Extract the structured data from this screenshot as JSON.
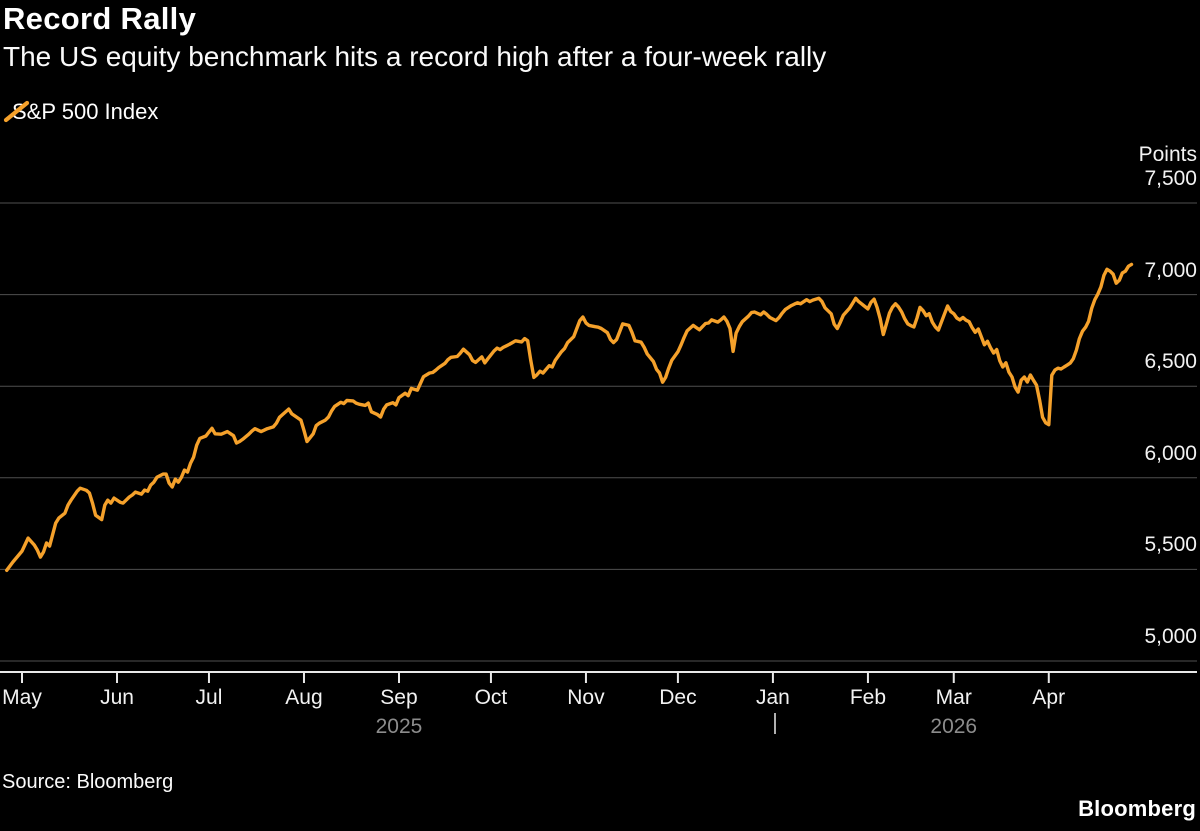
{
  "header": {
    "title": "Record Rally",
    "subtitle": "The US equity benchmark hits a record high after a four-week rally"
  },
  "legend": {
    "series_label": "S&P 500 Index"
  },
  "footer": {
    "source": "Source: Bloomberg",
    "brand": "Bloomberg"
  },
  "colors": {
    "accent": "#F5A12B",
    "grid": "#4f4f4f",
    "axis": "#e8e8e8",
    "text": "#f2f2f2",
    "muted": "#8c8c8c",
    "divider": "#b0b0b0",
    "background": "#000000"
  },
  "chart_data": {
    "type": "line",
    "title": "Record Rally",
    "series_name": "S&P 500 Index",
    "unit_label": "Points",
    "ylim": [
      5000,
      7500
    ],
    "grid": true,
    "y_axis": {
      "ticks": [
        7500,
        7000,
        6500,
        6000,
        5500,
        5000
      ],
      "tick_labels": [
        "7,500",
        "7,000",
        "6,500",
        "6,000",
        "5,500",
        "5,000"
      ]
    },
    "x_axis": {
      "range": [
        "2025-04-26",
        "2026-04-28"
      ],
      "month_ticks": [
        {
          "label": "May",
          "date": "2025-05-01"
        },
        {
          "label": "Jun",
          "date": "2025-06-01"
        },
        {
          "label": "Jul",
          "date": "2025-07-01"
        },
        {
          "label": "Aug",
          "date": "2025-08-01"
        },
        {
          "label": "Sep",
          "date": "2025-09-01"
        },
        {
          "label": "Oct",
          "date": "2025-10-01"
        },
        {
          "label": "Nov",
          "date": "2025-11-01"
        },
        {
          "label": "Dec",
          "date": "2025-12-01"
        },
        {
          "label": "Jan",
          "date": "2026-01-01"
        },
        {
          "label": "Feb",
          "date": "2026-02-01"
        },
        {
          "label": "Mar",
          "date": "2026-03-01"
        },
        {
          "label": "Apr",
          "date": "2026-04-01"
        }
      ],
      "year_labels": [
        {
          "label": "2025",
          "date": "2025-09-01"
        },
        {
          "label": "2026",
          "date": "2026-03-01"
        }
      ],
      "year_divider": {
        "label": "|",
        "date": "2026-01-01"
      }
    },
    "points": [
      [
        "2025-04-26",
        5495
      ],
      [
        "2025-04-28",
        5540
      ],
      [
        "2025-05-01",
        5600
      ],
      [
        "2025-05-03",
        5671
      ],
      [
        "2025-05-05",
        5633
      ],
      [
        "2025-05-06",
        5606
      ],
      [
        "2025-05-07",
        5567
      ],
      [
        "2025-05-08",
        5595
      ],
      [
        "2025-05-09",
        5644
      ],
      [
        "2025-05-10",
        5627
      ],
      [
        "2025-05-12",
        5753
      ],
      [
        "2025-05-13",
        5780
      ],
      [
        "2025-05-15",
        5807
      ],
      [
        "2025-05-16",
        5851
      ],
      [
        "2025-05-17",
        5878
      ],
      [
        "2025-05-19",
        5927
      ],
      [
        "2025-05-20",
        5943
      ],
      [
        "2025-05-22",
        5932
      ],
      [
        "2025-05-23",
        5917
      ],
      [
        "2025-05-24",
        5862
      ],
      [
        "2025-05-25",
        5796
      ],
      [
        "2025-05-27",
        5772
      ],
      [
        "2025-05-28",
        5851
      ],
      [
        "2025-05-29",
        5878
      ],
      [
        "2025-05-30",
        5862
      ],
      [
        "2025-05-31",
        5889
      ],
      [
        "2025-06-02",
        5867
      ],
      [
        "2025-06-03",
        5862
      ],
      [
        "2025-06-05",
        5895
      ],
      [
        "2025-06-06",
        5906
      ],
      [
        "2025-06-07",
        5922
      ],
      [
        "2025-06-09",
        5911
      ],
      [
        "2025-06-10",
        5933
      ],
      [
        "2025-06-11",
        5927
      ],
      [
        "2025-06-12",
        5960
      ],
      [
        "2025-06-13",
        5976
      ],
      [
        "2025-06-14",
        6003
      ],
      [
        "2025-06-16",
        6020
      ],
      [
        "2025-06-17",
        6020
      ],
      [
        "2025-06-18",
        5971
      ],
      [
        "2025-06-19",
        5950
      ],
      [
        "2025-06-20",
        5993
      ],
      [
        "2025-06-21",
        5976
      ],
      [
        "2025-06-22",
        6003
      ],
      [
        "2025-06-23",
        6042
      ],
      [
        "2025-06-24",
        6031
      ],
      [
        "2025-06-25",
        6080
      ],
      [
        "2025-06-26",
        6113
      ],
      [
        "2025-06-27",
        6178
      ],
      [
        "2025-06-28",
        6215
      ],
      [
        "2025-06-30",
        6228
      ],
      [
        "2025-07-01",
        6250
      ],
      [
        "2025-07-02",
        6270
      ],
      [
        "2025-07-03",
        6240
      ],
      [
        "2025-07-05",
        6238
      ],
      [
        "2025-07-07",
        6252
      ],
      [
        "2025-07-09",
        6230
      ],
      [
        "2025-07-10",
        6190
      ],
      [
        "2025-07-11",
        6198
      ],
      [
        "2025-07-12",
        6210
      ],
      [
        "2025-07-14",
        6238
      ],
      [
        "2025-07-15",
        6255
      ],
      [
        "2025-07-16",
        6268
      ],
      [
        "2025-07-18",
        6252
      ],
      [
        "2025-07-19",
        6260
      ],
      [
        "2025-07-20",
        6268
      ],
      [
        "2025-07-22",
        6278
      ],
      [
        "2025-07-23",
        6298
      ],
      [
        "2025-07-24",
        6330
      ],
      [
        "2025-07-25",
        6345
      ],
      [
        "2025-07-27",
        6375
      ],
      [
        "2025-07-28",
        6350
      ],
      [
        "2025-07-29",
        6338
      ],
      [
        "2025-07-31",
        6315
      ],
      [
        "2025-08-01",
        6258
      ],
      [
        "2025-08-02",
        6198
      ],
      [
        "2025-08-04",
        6240
      ],
      [
        "2025-08-05",
        6285
      ],
      [
        "2025-08-06",
        6298
      ],
      [
        "2025-08-08",
        6315
      ],
      [
        "2025-08-09",
        6332
      ],
      [
        "2025-08-10",
        6365
      ],
      [
        "2025-08-11",
        6390
      ],
      [
        "2025-08-13",
        6412
      ],
      [
        "2025-08-14",
        6405
      ],
      [
        "2025-08-15",
        6422
      ],
      [
        "2025-08-17",
        6420
      ],
      [
        "2025-08-18",
        6408
      ],
      [
        "2025-08-19",
        6402
      ],
      [
        "2025-08-21",
        6395
      ],
      [
        "2025-08-22",
        6408
      ],
      [
        "2025-08-23",
        6360
      ],
      [
        "2025-08-25",
        6345
      ],
      [
        "2025-08-26",
        6332
      ],
      [
        "2025-08-27",
        6375
      ],
      [
        "2025-08-28",
        6398
      ],
      [
        "2025-08-30",
        6410
      ],
      [
        "2025-08-31",
        6398
      ],
      [
        "2025-09-01",
        6438
      ],
      [
        "2025-09-03",
        6462
      ],
      [
        "2025-09-04",
        6448
      ],
      [
        "2025-09-05",
        6488
      ],
      [
        "2025-09-07",
        6478
      ],
      [
        "2025-09-08",
        6515
      ],
      [
        "2025-09-09",
        6552
      ],
      [
        "2025-09-11",
        6572
      ],
      [
        "2025-09-12",
        6575
      ],
      [
        "2025-09-13",
        6588
      ],
      [
        "2025-09-14",
        6602
      ],
      [
        "2025-09-16",
        6625
      ],
      [
        "2025-09-17",
        6645
      ],
      [
        "2025-09-18",
        6658
      ],
      [
        "2025-09-20",
        6662
      ],
      [
        "2025-09-21",
        6680
      ],
      [
        "2025-09-22",
        6702
      ],
      [
        "2025-09-24",
        6672
      ],
      [
        "2025-09-25",
        6640
      ],
      [
        "2025-09-26",
        6630
      ],
      [
        "2025-09-28",
        6660
      ],
      [
        "2025-09-29",
        6628
      ],
      [
        "2025-09-30",
        6650
      ],
      [
        "2025-10-02",
        6692
      ],
      [
        "2025-10-03",
        6708
      ],
      [
        "2025-10-04",
        6700
      ],
      [
        "2025-10-05",
        6712
      ],
      [
        "2025-10-07",
        6728
      ],
      [
        "2025-10-08",
        6738
      ],
      [
        "2025-10-09",
        6748
      ],
      [
        "2025-10-11",
        6742
      ],
      [
        "2025-10-12",
        6760
      ],
      [
        "2025-10-13",
        6748
      ],
      [
        "2025-10-14",
        6640
      ],
      [
        "2025-10-15",
        6548
      ],
      [
        "2025-10-16",
        6562
      ],
      [
        "2025-10-17",
        6582
      ],
      [
        "2025-10-18",
        6572
      ],
      [
        "2025-10-20",
        6612
      ],
      [
        "2025-10-21",
        6605
      ],
      [
        "2025-10-22",
        6642
      ],
      [
        "2025-10-24",
        6688
      ],
      [
        "2025-10-25",
        6705
      ],
      [
        "2025-10-26",
        6738
      ],
      [
        "2025-10-28",
        6770
      ],
      [
        "2025-10-29",
        6815
      ],
      [
        "2025-10-30",
        6858
      ],
      [
        "2025-10-31",
        6878
      ],
      [
        "2025-11-01",
        6845
      ],
      [
        "2025-11-02",
        6832
      ],
      [
        "2025-11-04",
        6825
      ],
      [
        "2025-11-05",
        6822
      ],
      [
        "2025-11-06",
        6815
      ],
      [
        "2025-11-08",
        6792
      ],
      [
        "2025-11-09",
        6755
      ],
      [
        "2025-11-10",
        6738
      ],
      [
        "2025-11-11",
        6755
      ],
      [
        "2025-11-12",
        6798
      ],
      [
        "2025-11-13",
        6840
      ],
      [
        "2025-11-15",
        6832
      ],
      [
        "2025-11-16",
        6795
      ],
      [
        "2025-11-17",
        6748
      ],
      [
        "2025-11-19",
        6740
      ],
      [
        "2025-11-20",
        6712
      ],
      [
        "2025-11-21",
        6675
      ],
      [
        "2025-11-23",
        6635
      ],
      [
        "2025-11-24",
        6592
      ],
      [
        "2025-11-25",
        6572
      ],
      [
        "2025-11-26",
        6522
      ],
      [
        "2025-11-27",
        6548
      ],
      [
        "2025-11-28",
        6598
      ],
      [
        "2025-11-29",
        6642
      ],
      [
        "2025-12-01",
        6688
      ],
      [
        "2025-12-02",
        6725
      ],
      [
        "2025-12-03",
        6765
      ],
      [
        "2025-12-04",
        6802
      ],
      [
        "2025-12-06",
        6832
      ],
      [
        "2025-12-07",
        6820
      ],
      [
        "2025-12-08",
        6808
      ],
      [
        "2025-12-10",
        6842
      ],
      [
        "2025-12-11",
        6845
      ],
      [
        "2025-12-12",
        6862
      ],
      [
        "2025-12-14",
        6850
      ],
      [
        "2025-12-15",
        6862
      ],
      [
        "2025-12-16",
        6878
      ],
      [
        "2025-12-17",
        6855
      ],
      [
        "2025-12-18",
        6815
      ],
      [
        "2025-12-19",
        6690
      ],
      [
        "2025-12-20",
        6790
      ],
      [
        "2025-12-21",
        6825
      ],
      [
        "2025-12-22",
        6852
      ],
      [
        "2025-12-24",
        6882
      ],
      [
        "2025-12-25",
        6902
      ],
      [
        "2025-12-26",
        6905
      ],
      [
        "2025-12-28",
        6890
      ],
      [
        "2025-12-29",
        6905
      ],
      [
        "2025-12-30",
        6892
      ],
      [
        "2025-12-31",
        6875
      ],
      [
        "2026-01-02",
        6858
      ],
      [
        "2026-01-03",
        6875
      ],
      [
        "2026-01-04",
        6898
      ],
      [
        "2026-01-05",
        6918
      ],
      [
        "2026-01-07",
        6940
      ],
      [
        "2026-01-08",
        6948
      ],
      [
        "2026-01-09",
        6955
      ],
      [
        "2026-01-10",
        6950
      ],
      [
        "2026-01-12",
        6972
      ],
      [
        "2026-01-13",
        6962
      ],
      [
        "2026-01-14",
        6970
      ],
      [
        "2026-01-16",
        6980
      ],
      [
        "2026-01-17",
        6962
      ],
      [
        "2026-01-18",
        6928
      ],
      [
        "2026-01-20",
        6895
      ],
      [
        "2026-01-21",
        6838
      ],
      [
        "2026-01-22",
        6815
      ],
      [
        "2026-01-23",
        6850
      ],
      [
        "2026-01-24",
        6888
      ],
      [
        "2026-01-26",
        6925
      ],
      [
        "2026-01-27",
        6952
      ],
      [
        "2026-01-28",
        6980
      ],
      [
        "2026-01-29",
        6962
      ],
      [
        "2026-01-31",
        6935
      ],
      [
        "2026-02-01",
        6922
      ],
      [
        "2026-02-02",
        6958
      ],
      [
        "2026-02-03",
        6975
      ],
      [
        "2026-02-04",
        6930
      ],
      [
        "2026-02-05",
        6868
      ],
      [
        "2026-02-06",
        6782
      ],
      [
        "2026-02-07",
        6838
      ],
      [
        "2026-02-08",
        6898
      ],
      [
        "2026-02-09",
        6932
      ],
      [
        "2026-02-10",
        6950
      ],
      [
        "2026-02-11",
        6932
      ],
      [
        "2026-02-12",
        6905
      ],
      [
        "2026-02-13",
        6868
      ],
      [
        "2026-02-14",
        6840
      ],
      [
        "2026-02-15",
        6830
      ],
      [
        "2026-02-16",
        6823
      ],
      [
        "2026-02-17",
        6872
      ],
      [
        "2026-02-18",
        6930
      ],
      [
        "2026-02-19",
        6912
      ],
      [
        "2026-02-20",
        6885
      ],
      [
        "2026-02-21",
        6896
      ],
      [
        "2026-02-22",
        6850
      ],
      [
        "2026-02-23",
        6823
      ],
      [
        "2026-02-24",
        6807
      ],
      [
        "2026-02-26",
        6896
      ],
      [
        "2026-02-27",
        6938
      ],
      [
        "2026-02-28",
        6908
      ],
      [
        "2026-03-01",
        6896
      ],
      [
        "2026-03-02",
        6872
      ],
      [
        "2026-03-03",
        6862
      ],
      [
        "2026-03-04",
        6875
      ],
      [
        "2026-03-05",
        6860
      ],
      [
        "2026-03-06",
        6852
      ],
      [
        "2026-03-07",
        6820
      ],
      [
        "2026-03-08",
        6794
      ],
      [
        "2026-03-09",
        6812
      ],
      [
        "2026-03-10",
        6770
      ],
      [
        "2026-03-11",
        6726
      ],
      [
        "2026-03-12",
        6745
      ],
      [
        "2026-03-13",
        6710
      ],
      [
        "2026-03-14",
        6681
      ],
      [
        "2026-03-15",
        6700
      ],
      [
        "2026-03-16",
        6640
      ],
      [
        "2026-03-17",
        6605
      ],
      [
        "2026-03-18",
        6628
      ],
      [
        "2026-03-19",
        6577
      ],
      [
        "2026-03-20",
        6550
      ],
      [
        "2026-03-21",
        6495
      ],
      [
        "2026-03-22",
        6468
      ],
      [
        "2026-03-23",
        6533
      ],
      [
        "2026-03-24",
        6550
      ],
      [
        "2026-03-25",
        6523
      ],
      [
        "2026-03-26",
        6561
      ],
      [
        "2026-03-27",
        6533
      ],
      [
        "2026-03-28",
        6506
      ],
      [
        "2026-03-29",
        6424
      ],
      [
        "2026-03-30",
        6330
      ],
      [
        "2026-03-31",
        6300
      ],
      [
        "2026-04-01",
        6290
      ],
      [
        "2026-04-02",
        6560
      ],
      [
        "2026-04-03",
        6588
      ],
      [
        "2026-04-04",
        6598
      ],
      [
        "2026-04-05",
        6594
      ],
      [
        "2026-04-06",
        6605
      ],
      [
        "2026-04-07",
        6615
      ],
      [
        "2026-04-08",
        6626
      ],
      [
        "2026-04-09",
        6650
      ],
      [
        "2026-04-10",
        6697
      ],
      [
        "2026-04-11",
        6760
      ],
      [
        "2026-04-12",
        6800
      ],
      [
        "2026-04-13",
        6822
      ],
      [
        "2026-04-14",
        6855
      ],
      [
        "2026-04-15",
        6925
      ],
      [
        "2026-04-16",
        6972
      ],
      [
        "2026-04-17",
        7002
      ],
      [
        "2026-04-18",
        7042
      ],
      [
        "2026-04-19",
        7105
      ],
      [
        "2026-04-20",
        7138
      ],
      [
        "2026-04-21",
        7128
      ],
      [
        "2026-04-22",
        7112
      ],
      [
        "2026-04-23",
        7062
      ],
      [
        "2026-04-24",
        7078
      ],
      [
        "2026-04-25",
        7118
      ],
      [
        "2026-04-26",
        7128
      ],
      [
        "2026-04-27",
        7155
      ],
      [
        "2026-04-28",
        7165
      ]
    ]
  }
}
